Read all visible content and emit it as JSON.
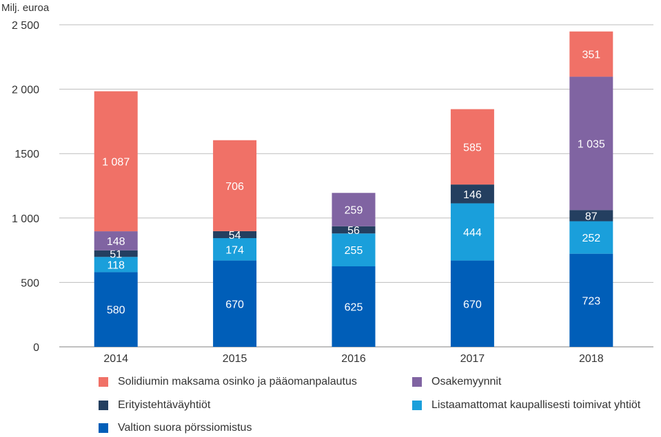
{
  "chart_data": {
    "type": "bar",
    "stacked": true,
    "ylabel": "Milj. euroa",
    "ylim": [
      0,
      2500
    ],
    "yticks": [
      0,
      500,
      1000,
      1500,
      2000,
      2500
    ],
    "ytick_labels": [
      "0",
      "500",
      "1 000",
      "1500",
      "2 000",
      "2 500"
    ],
    "categories": [
      "2014",
      "2015",
      "2016",
      "2017",
      "2018"
    ],
    "series": [
      {
        "key": "valtion",
        "name": "Valtion suora pörssiomistus",
        "color": "#005EB8",
        "label_color": "#ffffff",
        "values": [
          580,
          670,
          625,
          670,
          723
        ],
        "labels": [
          "580",
          "670",
          "625",
          "670",
          "723"
        ]
      },
      {
        "key": "listaamattomat",
        "name": "Listaamattomat kaupallisesti toimivat yhtiöt",
        "color": "#1A9FDB",
        "label_color": "#ffffff",
        "values": [
          118,
          174,
          255,
          444,
          252
        ],
        "labels": [
          "118",
          "174",
          "255",
          "444",
          "252"
        ]
      },
      {
        "key": "erityis",
        "name": "Erityistehtäväyhtiöt",
        "color": "#243F60",
        "label_color": "#ffffff",
        "values": [
          51,
          54,
          56,
          146,
          87
        ],
        "labels": [
          "51",
          "54",
          "56",
          "146",
          "87"
        ]
      },
      {
        "key": "osake",
        "name": "Osakemyynnit",
        "color": "#8064A2",
        "label_color": "#ffffff",
        "values": [
          148,
          0,
          259,
          0,
          1035
        ],
        "labels": [
          "148",
          "",
          "259",
          "",
          "1 035"
        ]
      },
      {
        "key": "solidium",
        "name": "Solidiumin maksama osinko ja pääomanpalautus",
        "color": "#F07167",
        "label_color": "#ffffff",
        "values": [
          1087,
          706,
          0,
          585,
          351
        ],
        "labels": [
          "1 087",
          "706",
          "",
          "585",
          "351"
        ]
      }
    ],
    "legend_order": [
      "solidium",
      "osake",
      "erityis",
      "listaamattomat",
      "valtion"
    ],
    "legend_position": "bottom",
    "grid": true
  }
}
